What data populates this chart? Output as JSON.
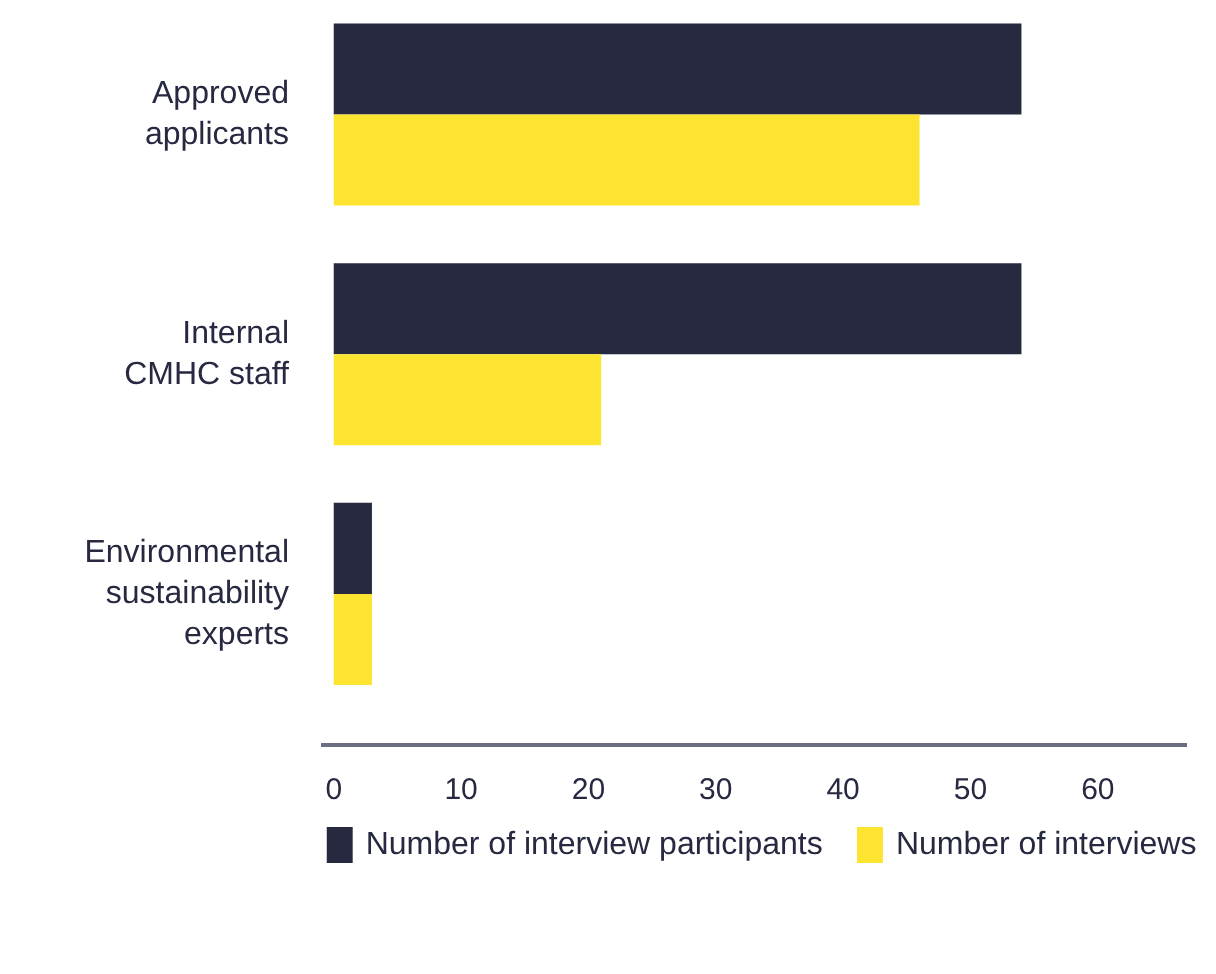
{
  "chart_data": {
    "type": "bar",
    "orientation": "horizontal",
    "categories": [
      "Approved applicants",
      "Internal CMHC staff",
      "Environmental sustainability experts"
    ],
    "series": [
      {
        "name": "Number of interview participants",
        "color": "#262940",
        "values": [
          54,
          54,
          3
        ]
      },
      {
        "name": "Number of interviews",
        "color": "#fde431",
        "values": [
          46,
          21,
          3
        ]
      }
    ],
    "xlim": [
      -1,
      67
    ],
    "xticks": [
      0,
      10,
      20,
      30,
      40,
      50,
      60
    ],
    "grid": false,
    "legend": "bottom"
  }
}
